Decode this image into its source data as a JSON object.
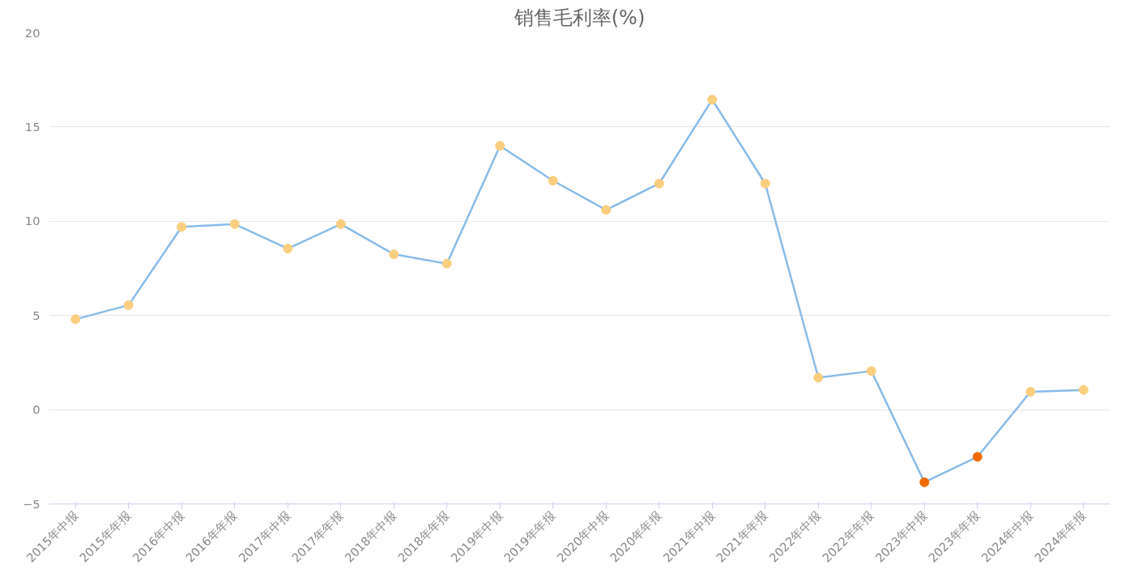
{
  "chart_data": {
    "type": "line",
    "title": "销售毛利率(%)",
    "categories": [
      "2015年中报",
      "2015年年报",
      "2016年中报",
      "2016年年报",
      "2017年中报",
      "2017年年报",
      "2018年中报",
      "2018年年报",
      "2019年中报",
      "2019年年报",
      "2020年中报",
      "2020年年报",
      "2021年中报",
      "2021年年报",
      "2022年中报",
      "2022年年报",
      "2023年中报",
      "2023年年报",
      "2024年中报",
      "2024年年报"
    ],
    "series": [
      {
        "color": "#88bbe8",
        "values": [
          4.8,
          5.55,
          9.7,
          9.85,
          8.55,
          9.85,
          8.25,
          7.75,
          14.0,
          12.15,
          10.6,
          12.0,
          16.45,
          12.0,
          1.7,
          2.05,
          -3.85,
          -2.5,
          0.95,
          1.05
        ],
        "colors": [
          "#f9cf7f",
          "#f9cf7f",
          "#f9cf7f",
          "#f9cf7f",
          "#f9cf7f",
          "#f9cf7f",
          "#f9cf7f",
          "#f9cf7f",
          "#f9cf7f",
          "#f9cf7f",
          "#f9cf7f",
          "#f9cf7f",
          "#f9cf7f",
          "#f9cf7f",
          "#f9cf7f",
          "#f9cf7f",
          "#f06a00",
          "#f06a00",
          "#f9cf7f",
          "#f9cf7f"
        ]
      }
    ],
    "ylim": [
      -5,
      20
    ],
    "yticks": [
      -5,
      0,
      5,
      10,
      15,
      20
    ],
    "grid": "y",
    "marker": "circle",
    "line_style": "solid"
  }
}
